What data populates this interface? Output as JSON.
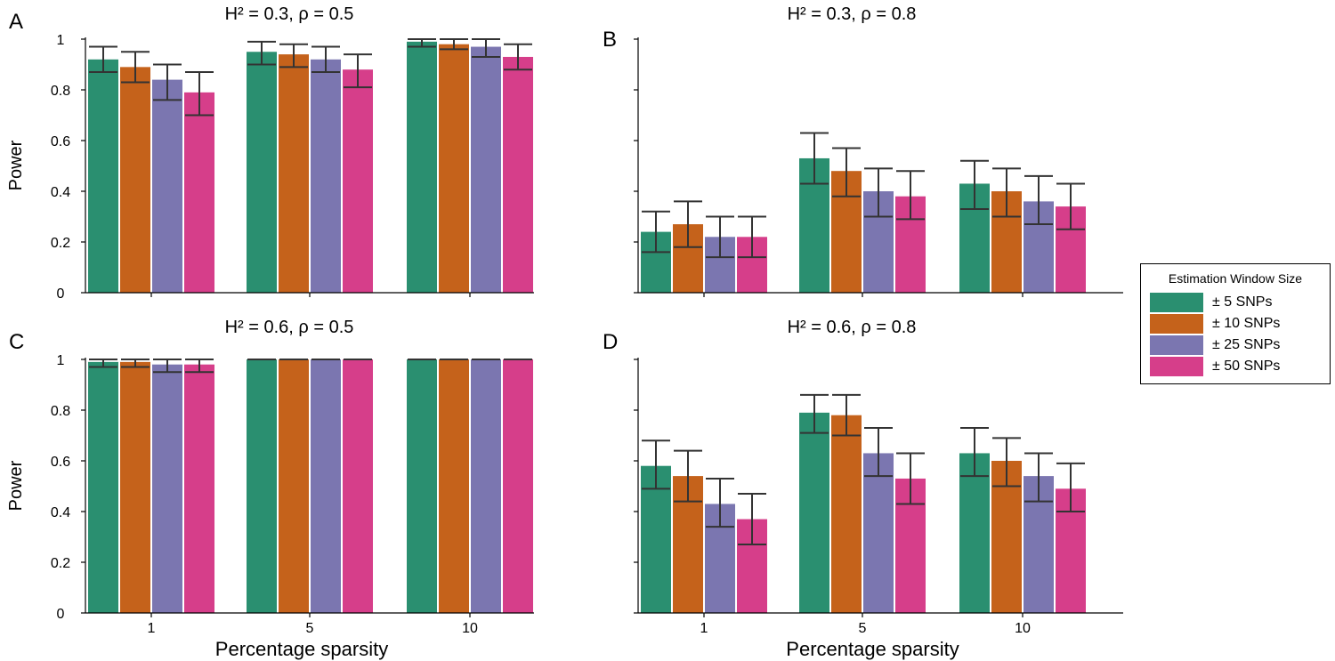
{
  "figure": {
    "legend_title": "Estimation Window Size",
    "legend_items": [
      "± 5 SNPs",
      "± 10 SNPs",
      "± 25 SNPs",
      "± 50 SNPs"
    ],
    "colors": [
      "#2a8f70",
      "#c5621b",
      "#7b76b0",
      "#d63e8a"
    ]
  },
  "chart_data": [
    {
      "panel": "A",
      "type": "bar",
      "title": "H² = 0.3, ρ = 0.5",
      "categories": [
        "1",
        "5",
        "10"
      ],
      "xlabel": "",
      "ylabel": "Power",
      "ylim": [
        0,
        1
      ],
      "yticks": [
        "0",
        "0.2",
        "0.4",
        "0.6",
        "0.8",
        "1"
      ],
      "series": [
        {
          "name": "± 5 SNPs",
          "values": [
            0.92,
            0.95,
            0.99
          ],
          "err_low": [
            0.87,
            0.9,
            0.97
          ],
          "err_high": [
            0.97,
            0.99,
            1.0
          ]
        },
        {
          "name": "± 10 SNPs",
          "values": [
            0.89,
            0.94,
            0.98
          ],
          "err_low": [
            0.83,
            0.89,
            0.96
          ],
          "err_high": [
            0.95,
            0.98,
            1.0
          ]
        },
        {
          "name": "± 25 SNPs",
          "values": [
            0.84,
            0.92,
            0.97
          ],
          "err_low": [
            0.76,
            0.87,
            0.93
          ],
          "err_high": [
            0.9,
            0.97,
            1.0
          ]
        },
        {
          "name": "± 50 SNPs",
          "values": [
            0.79,
            0.88,
            0.93
          ],
          "err_low": [
            0.7,
            0.81,
            0.88
          ],
          "err_high": [
            0.87,
            0.94,
            0.98
          ]
        }
      ]
    },
    {
      "panel": "B",
      "type": "bar",
      "title": "H² = 0.3, ρ = 0.8",
      "categories": [
        "1",
        "5",
        "10"
      ],
      "xlabel": "",
      "ylabel": "",
      "ylim": [
        0,
        1
      ],
      "yticks": [
        "",
        "",
        "",
        "",
        "",
        ""
      ],
      "series": [
        {
          "name": "± 5 SNPs",
          "values": [
            0.24,
            0.53,
            0.43
          ],
          "err_low": [
            0.16,
            0.43,
            0.33
          ],
          "err_high": [
            0.32,
            0.63,
            0.52
          ]
        },
        {
          "name": "± 10 SNPs",
          "values": [
            0.27,
            0.48,
            0.4
          ],
          "err_low": [
            0.18,
            0.38,
            0.3
          ],
          "err_high": [
            0.36,
            0.57,
            0.49
          ]
        },
        {
          "name": "± 25 SNPs",
          "values": [
            0.22,
            0.4,
            0.36
          ],
          "err_low": [
            0.14,
            0.3,
            0.27
          ],
          "err_high": [
            0.3,
            0.49,
            0.46
          ]
        },
        {
          "name": "± 50 SNPs",
          "values": [
            0.22,
            0.38,
            0.34
          ],
          "err_low": [
            0.14,
            0.29,
            0.25
          ],
          "err_high": [
            0.3,
            0.48,
            0.43
          ]
        }
      ]
    },
    {
      "panel": "C",
      "type": "bar",
      "title": "H² = 0.6, ρ = 0.5",
      "categories": [
        "1",
        "5",
        "10"
      ],
      "xlabel": "Percentage sparsity",
      "ylabel": "Power",
      "ylim": [
        0,
        1
      ],
      "yticks": [
        "0",
        "0.2",
        "0.4",
        "0.6",
        "0.8",
        "1"
      ],
      "series": [
        {
          "name": "± 5 SNPs",
          "values": [
            0.99,
            1.0,
            1.0
          ],
          "err_low": [
            0.97,
            1.0,
            1.0
          ],
          "err_high": [
            1.0,
            1.0,
            1.0
          ]
        },
        {
          "name": "± 10 SNPs",
          "values": [
            0.99,
            1.0,
            1.0
          ],
          "err_low": [
            0.97,
            1.0,
            1.0
          ],
          "err_high": [
            1.0,
            1.0,
            1.0
          ]
        },
        {
          "name": "± 25 SNPs",
          "values": [
            0.98,
            1.0,
            1.0
          ],
          "err_low": [
            0.95,
            1.0,
            1.0
          ],
          "err_high": [
            1.0,
            1.0,
            1.0
          ]
        },
        {
          "name": "± 50 SNPs",
          "values": [
            0.98,
            1.0,
            1.0
          ],
          "err_low": [
            0.95,
            1.0,
            1.0
          ],
          "err_high": [
            1.0,
            1.0,
            1.0
          ]
        }
      ]
    },
    {
      "panel": "D",
      "type": "bar",
      "title": "H² = 0.6, ρ = 0.8",
      "categories": [
        "1",
        "5",
        "10"
      ],
      "xlabel": "Percentage sparsity",
      "ylabel": "",
      "ylim": [
        0,
        1
      ],
      "yticks": [
        "",
        "",
        "",
        "",
        "",
        ""
      ],
      "series": [
        {
          "name": "± 5 SNPs",
          "values": [
            0.58,
            0.79,
            0.63
          ],
          "err_low": [
            0.49,
            0.71,
            0.54
          ],
          "err_high": [
            0.68,
            0.86,
            0.73
          ]
        },
        {
          "name": "± 10 SNPs",
          "values": [
            0.54,
            0.78,
            0.6
          ],
          "err_low": [
            0.44,
            0.7,
            0.5
          ],
          "err_high": [
            0.64,
            0.86,
            0.69
          ]
        },
        {
          "name": "± 25 SNPs",
          "values": [
            0.43,
            0.63,
            0.54
          ],
          "err_low": [
            0.34,
            0.54,
            0.44
          ],
          "err_high": [
            0.53,
            0.73,
            0.63
          ]
        },
        {
          "name": "± 50 SNPs",
          "values": [
            0.37,
            0.53,
            0.49
          ],
          "err_low": [
            0.27,
            0.43,
            0.4
          ],
          "err_high": [
            0.47,
            0.63,
            0.59
          ]
        }
      ]
    }
  ]
}
